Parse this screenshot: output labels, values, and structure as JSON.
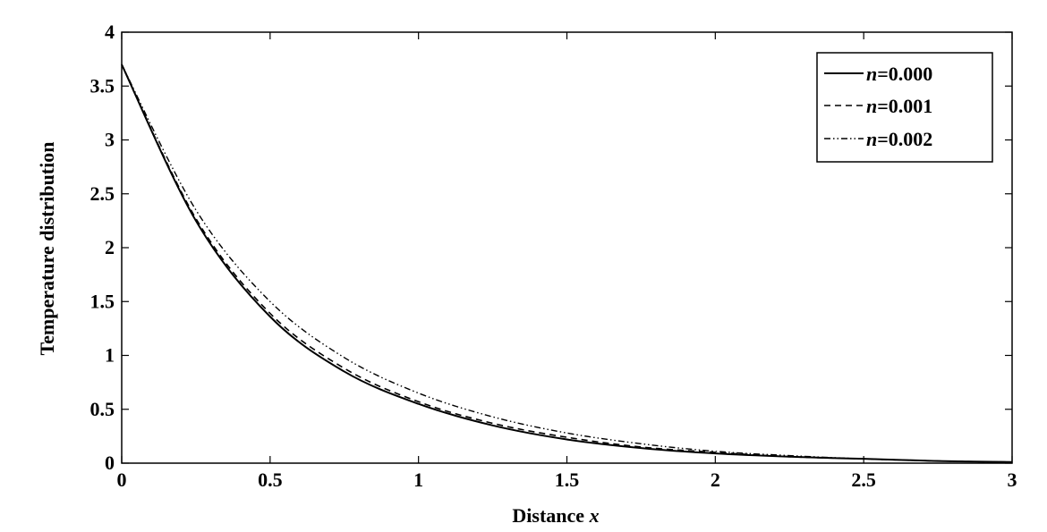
{
  "chart_data": {
    "type": "line",
    "xlabel_text": "Distance ",
    "xlabel_var": "x",
    "ylabel": "Temperature distribution",
    "xlim": [
      0,
      3
    ],
    "ylim": [
      0,
      4
    ],
    "xticks": [
      "0",
      "0.5",
      "1",
      "1.5",
      "2",
      "2.5",
      "3"
    ],
    "yticks": [
      "0",
      "0.5",
      "1",
      "1.5",
      "2",
      "2.5",
      "3",
      "3.5",
      "4"
    ],
    "grid": false,
    "legend_position": "top-right",
    "x": [
      0,
      0.25,
      0.5,
      0.75,
      1.0,
      1.25,
      1.5,
      1.75,
      2.0,
      2.25,
      2.5,
      2.75,
      3.0
    ],
    "series": [
      {
        "name_var": "n",
        "name_value": "=0.000",
        "style": "solid",
        "values": [
          3.7,
          2.25,
          1.36,
          0.85,
          0.55,
          0.35,
          0.22,
          0.14,
          0.09,
          0.06,
          0.04,
          0.02,
          0.01
        ]
      },
      {
        "name_var": "n",
        "name_value": "=0.001",
        "style": "dashed",
        "values": [
          3.7,
          2.27,
          1.39,
          0.88,
          0.57,
          0.37,
          0.24,
          0.15,
          0.1,
          0.06,
          0.04,
          0.02,
          0.01
        ]
      },
      {
        "name_var": "n",
        "name_value": "=0.002",
        "style": "dashdot",
        "values": [
          3.7,
          2.35,
          1.5,
          0.98,
          0.65,
          0.43,
          0.28,
          0.18,
          0.11,
          0.07,
          0.04,
          0.02,
          0.01
        ]
      }
    ]
  }
}
